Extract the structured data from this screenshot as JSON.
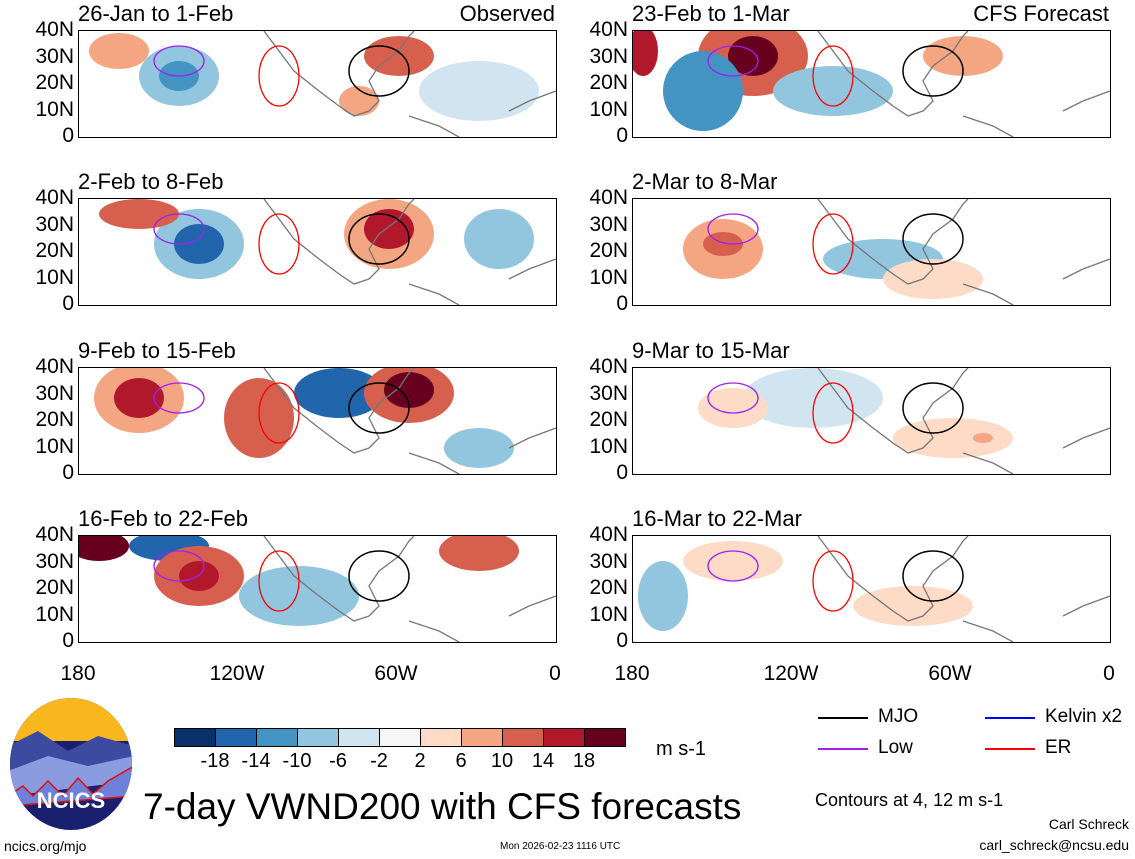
{
  "panels": {
    "left": [
      {
        "title": "26-Jan to 1-Feb",
        "tag": "Observed"
      },
      {
        "title": "2-Feb to 8-Feb"
      },
      {
        "title": "9-Feb to 15-Feb"
      },
      {
        "title": "16-Feb to 22-Feb"
      }
    ],
    "right": [
      {
        "title": "23-Feb to 1-Mar",
        "tag": "CFS Forecast"
      },
      {
        "title": "2-Mar to 8-Mar"
      },
      {
        "title": "9-Mar to 15-Mar"
      },
      {
        "title": "16-Mar to 22-Mar"
      }
    ]
  },
  "axes": {
    "lat_labels": [
      "40N",
      "30N",
      "20N",
      "10N",
      "0"
    ],
    "lon_labels": [
      "180",
      "120W",
      "60W",
      "0"
    ]
  },
  "colorbar": {
    "colors": [
      "#08306b",
      "#2166ac",
      "#4393c3",
      "#92c5de",
      "#d1e5f0",
      "#f7f7f7",
      "#fddbc7",
      "#f4a582",
      "#d6604d",
      "#b2182b",
      "#67001f"
    ],
    "ticks": [
      "-18",
      "-14",
      "-10",
      "-6",
      "-2",
      "2",
      "6",
      "10",
      "14",
      "18"
    ],
    "units": "m s-1"
  },
  "legend": {
    "items": [
      {
        "label": "MJO",
        "color": "#000000"
      },
      {
        "label": "Kelvin x2",
        "color": "#0000ff"
      },
      {
        "label": "Low",
        "color": "#a020f0"
      },
      {
        "label": "ER",
        "color": "#ff0000"
      }
    ],
    "contours_note": "Contours at 4, 12 m s-1"
  },
  "title": "7-day VWND200 with CFS forecasts",
  "logo_text": "NCICS",
  "footer": {
    "url": "ncics.org/mjo",
    "timestamp": "Mon 2026-02-23 1116 UTC",
    "author": "Carl Schreck",
    "email": "carl_schreck@ncsu.edu"
  }
}
